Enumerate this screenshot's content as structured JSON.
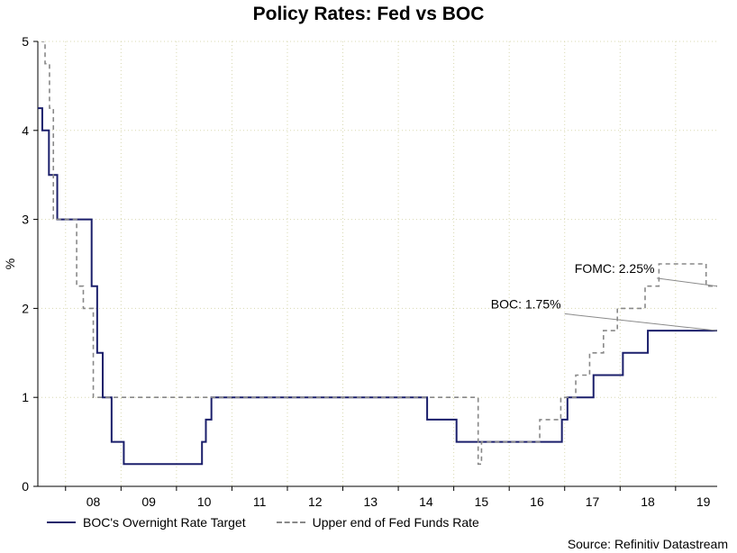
{
  "chart_data": {
    "type": "line",
    "title": "Policy Rates: Fed vs BOC",
    "xlabel": "",
    "ylabel": "%",
    "ylim": [
      0,
      5
    ],
    "xlim": [
      2007.5,
      2019.75
    ],
    "yticks": [
      0,
      1,
      2,
      3,
      4,
      5
    ],
    "xtick_labels": [
      "08",
      "09",
      "10",
      "11",
      "12",
      "13",
      "14",
      "15",
      "16",
      "17",
      "18",
      "19"
    ],
    "xtick_positions": [
      2008,
      2009,
      2010,
      2011,
      2012,
      2013,
      2014,
      2015,
      2016,
      2017,
      2018,
      2019
    ],
    "grid": true,
    "series": [
      {
        "name": "BOC's Overnight Rate Target",
        "color": "#1b1f6b",
        "style": "solid",
        "step": true,
        "x": [
          2007.5,
          2007.58,
          2007.7,
          2007.85,
          2008.35,
          2008.47,
          2008.57,
          2008.67,
          2008.83,
          2009.0,
          2009.05,
          2009.18,
          2009.28,
          2010.46,
          2010.53,
          2010.63,
          2010.8,
          2014.52,
          2015.05,
          2016.33,
          2016.95,
          2017.05,
          2017.18,
          2017.52,
          2018.05,
          2018.2,
          2018.5,
          2018.82,
          2019.75
        ],
        "y": [
          4.25,
          4.0,
          3.5,
          3.0,
          3.0,
          2.25,
          1.5,
          1.0,
          0.5,
          0.5,
          0.25,
          0.25,
          0.25,
          0.5,
          0.75,
          1.0,
          1.0,
          0.75,
          0.5,
          0.5,
          0.75,
          1.0,
          1.0,
          1.25,
          1.5,
          1.5,
          1.75,
          1.75,
          1.75
        ]
      },
      {
        "name": "Upper end of Fed Funds Rate",
        "color": "#888888",
        "style": "dashed",
        "step": true,
        "x": [
          2007.5,
          2007.58,
          2007.63,
          2007.71,
          2007.78,
          2008.2,
          2008.32,
          2008.45,
          2008.5,
          2015.44,
          2015.5,
          2016.45,
          2016.55,
          2016.7,
          2016.93,
          2017.2,
          2017.45,
          2017.7,
          2017.95,
          2018.2,
          2018.45,
          2018.7,
          2018.95,
          2019.2,
          2019.55,
          2019.6,
          2019.75
        ],
        "y": [
          5.25,
          5.0,
          4.75,
          4.25,
          3.0,
          2.25,
          2.0,
          2.0,
          1.0,
          0.25,
          0.5,
          0.5,
          0.75,
          0.75,
          1.0,
          1.25,
          1.5,
          1.75,
          2.0,
          2.0,
          2.25,
          2.5,
          2.5,
          2.5,
          2.25,
          2.25,
          2.25
        ]
      }
    ],
    "annotations": [
      {
        "text": "FOMC: 2.25%",
        "x": 2017.9,
        "y": 2.4,
        "target_x": 2019.75,
        "target_y": 2.25
      },
      {
        "text": "BOC: 1.75%",
        "x": 2016.3,
        "y": 2.0,
        "target_x": 2019.75,
        "target_y": 1.75
      }
    ]
  },
  "legend": {
    "boc_label": "BOC's Overnight Rate Target",
    "fed_label": "Upper end of Fed Funds Rate"
  },
  "source": "Source: Refinitiv Datastream"
}
